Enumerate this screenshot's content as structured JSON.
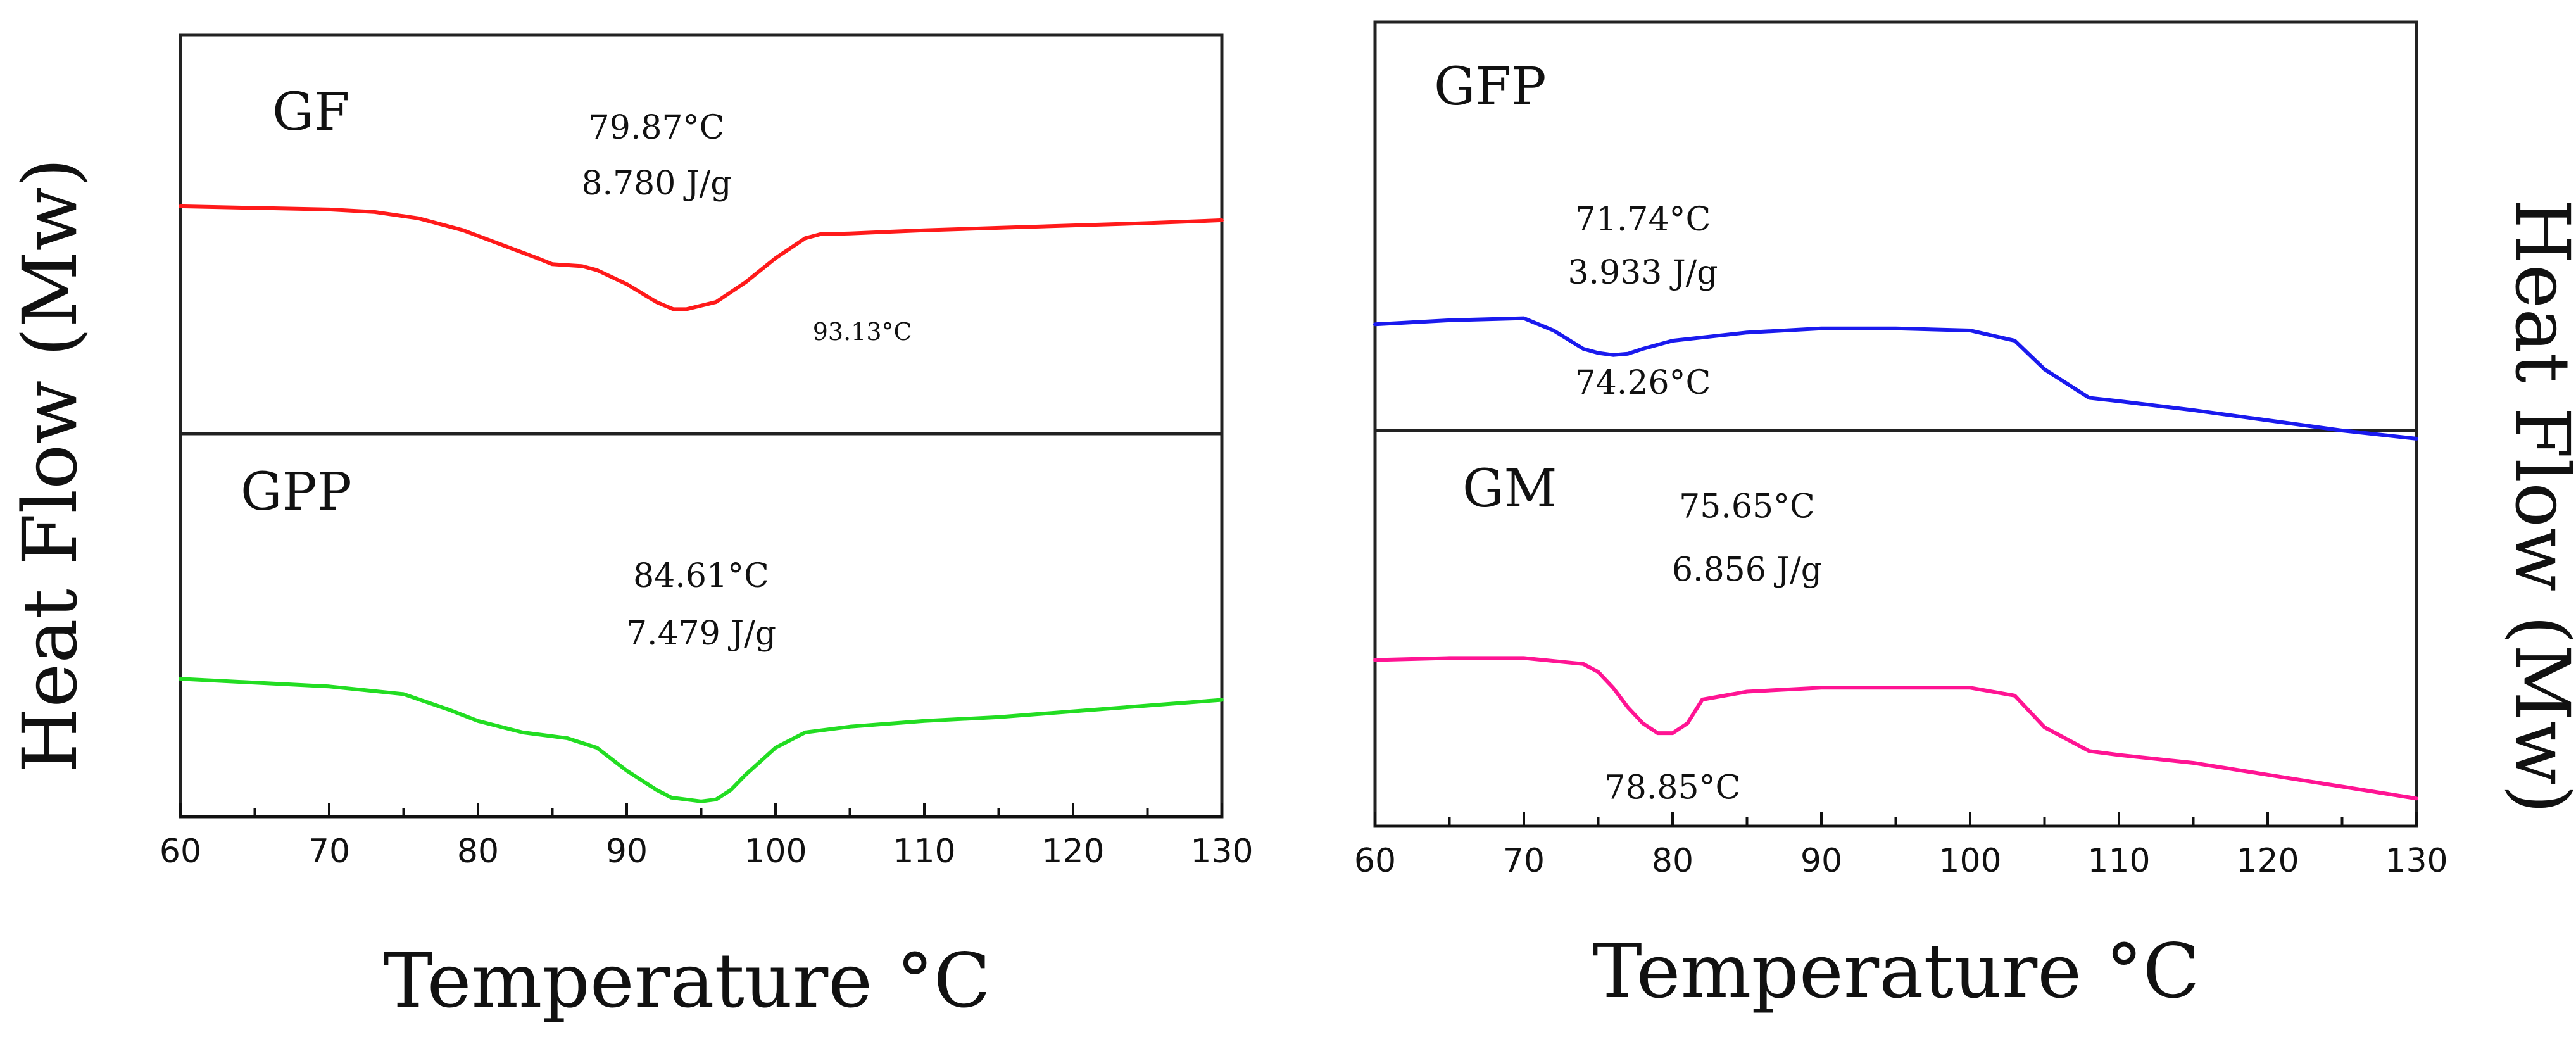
{
  "figure": {
    "left_ylabel": "Heat Flow (Mw)",
    "right_ylabel": "Heat Flow (Mw)",
    "left_xlabel": "Temperature °C",
    "right_xlabel": "Temperature °C"
  },
  "chart_data": [
    {
      "id": "GF",
      "type": "line",
      "title": "GF",
      "color": "#ff1a1a",
      "xlabel": "Temperature °C",
      "ylabel": "Heat Flow (Mw)",
      "xlim": [
        60,
        130
      ],
      "ylim": [
        0,
        1
      ],
      "x": [
        60,
        65,
        70,
        73,
        76,
        79,
        82,
        84,
        85,
        87,
        88,
        90,
        92,
        93.13,
        94,
        96,
        98,
        100,
        102,
        103,
        105,
        110,
        115,
        120,
        125,
        130
      ],
      "y": [
        0.57,
        0.566,
        0.562,
        0.556,
        0.54,
        0.51,
        0.468,
        0.44,
        0.425,
        0.42,
        0.41,
        0.375,
        0.33,
        0.312,
        0.312,
        0.33,
        0.38,
        0.44,
        0.49,
        0.5,
        0.502,
        0.51,
        0.516,
        0.522,
        0.528,
        0.535
      ],
      "annotations": [
        {
          "text": "79.87°C",
          "x": 92,
          "y": 0.74
        },
        {
          "text": "8.780 J/g",
          "x": 92,
          "y": 0.6
        },
        {
          "text": "93.13°C",
          "x": 102.5,
          "y": 0.235
        }
      ]
    },
    {
      "id": "GPP",
      "type": "line",
      "title": "GPP",
      "color": "#22dd22",
      "xlabel": "Temperature °C",
      "ylabel": "Heat Flow (Mw)",
      "xlim": [
        60,
        130
      ],
      "ylim": [
        0,
        1
      ],
      "x": [
        60,
        65,
        70,
        75,
        78,
        80,
        83,
        86,
        88,
        90,
        92,
        93,
        95,
        96,
        97,
        98,
        100,
        102,
        105,
        110,
        115,
        120,
        125,
        130
      ],
      "y": [
        0.36,
        0.35,
        0.34,
        0.32,
        0.28,
        0.25,
        0.22,
        0.205,
        0.18,
        0.12,
        0.07,
        0.05,
        0.04,
        0.045,
        0.07,
        0.11,
        0.18,
        0.22,
        0.235,
        0.25,
        0.26,
        0.275,
        0.29,
        0.305
      ],
      "annotations": [
        {
          "text": "84.61°C",
          "x": 95,
          "y": 0.6
        },
        {
          "text": "7.479 J/g",
          "x": 95,
          "y": 0.45
        }
      ]
    },
    {
      "id": "GFP",
      "type": "line",
      "title": "GFP",
      "color": "#1a1aee",
      "xlabel": "Temperature °C",
      "ylabel": "Heat Flow (Mw)",
      "xlim": [
        60,
        130
      ],
      "ylim": [
        0,
        1
      ],
      "x": [
        60,
        65,
        70,
        72,
        74,
        75,
        76,
        77,
        78,
        80,
        85,
        90,
        95,
        100,
        103,
        105,
        108,
        110,
        115,
        120,
        125,
        130
      ],
      "y": [
        0.26,
        0.27,
        0.275,
        0.245,
        0.2,
        0.19,
        0.185,
        0.188,
        0.2,
        0.22,
        0.24,
        0.25,
        0.25,
        0.245,
        0.22,
        0.15,
        0.08,
        0.072,
        0.05,
        0.025,
        0.0,
        -0.02
      ],
      "annotations": [
        {
          "text": "71.74°C",
          "x": 78,
          "y": 0.49
        },
        {
          "text": "3.933 J/g",
          "x": 78,
          "y": 0.36
        },
        {
          "text": "74.26°C",
          "x": 78,
          "y": 0.09
        }
      ]
    },
    {
      "id": "GM",
      "type": "line",
      "title": "GM",
      "color": "#ff1493",
      "xlabel": "Temperature °C",
      "ylabel": "Heat Flow (Mw)",
      "xlim": [
        60,
        130
      ],
      "ylim": [
        0,
        1
      ],
      "x": [
        60,
        65,
        70,
        74,
        75,
        76,
        77,
        78,
        79,
        80,
        81,
        82,
        85,
        90,
        95,
        100,
        103,
        105,
        108,
        110,
        115,
        120,
        125,
        130
      ],
      "y": [
        0.42,
        0.425,
        0.425,
        0.41,
        0.39,
        0.35,
        0.3,
        0.26,
        0.235,
        0.235,
        0.26,
        0.32,
        0.34,
        0.35,
        0.35,
        0.35,
        0.33,
        0.25,
        0.19,
        0.18,
        0.16,
        0.13,
        0.1,
        0.07
      ],
      "annotations": [
        {
          "text": "75.65°C",
          "x": 85,
          "y": 0.78
        },
        {
          "text": "6.856 J/g",
          "x": 85,
          "y": 0.62
        },
        {
          "text": "78.85°C",
          "x": 80,
          "y": 0.07
        }
      ]
    }
  ],
  "axes": {
    "xticks": [
      60,
      70,
      80,
      90,
      100,
      110,
      120,
      130
    ],
    "xtick_labels": [
      "60",
      "70",
      "80",
      "90",
      "100",
      "110",
      "120",
      "130"
    ]
  }
}
